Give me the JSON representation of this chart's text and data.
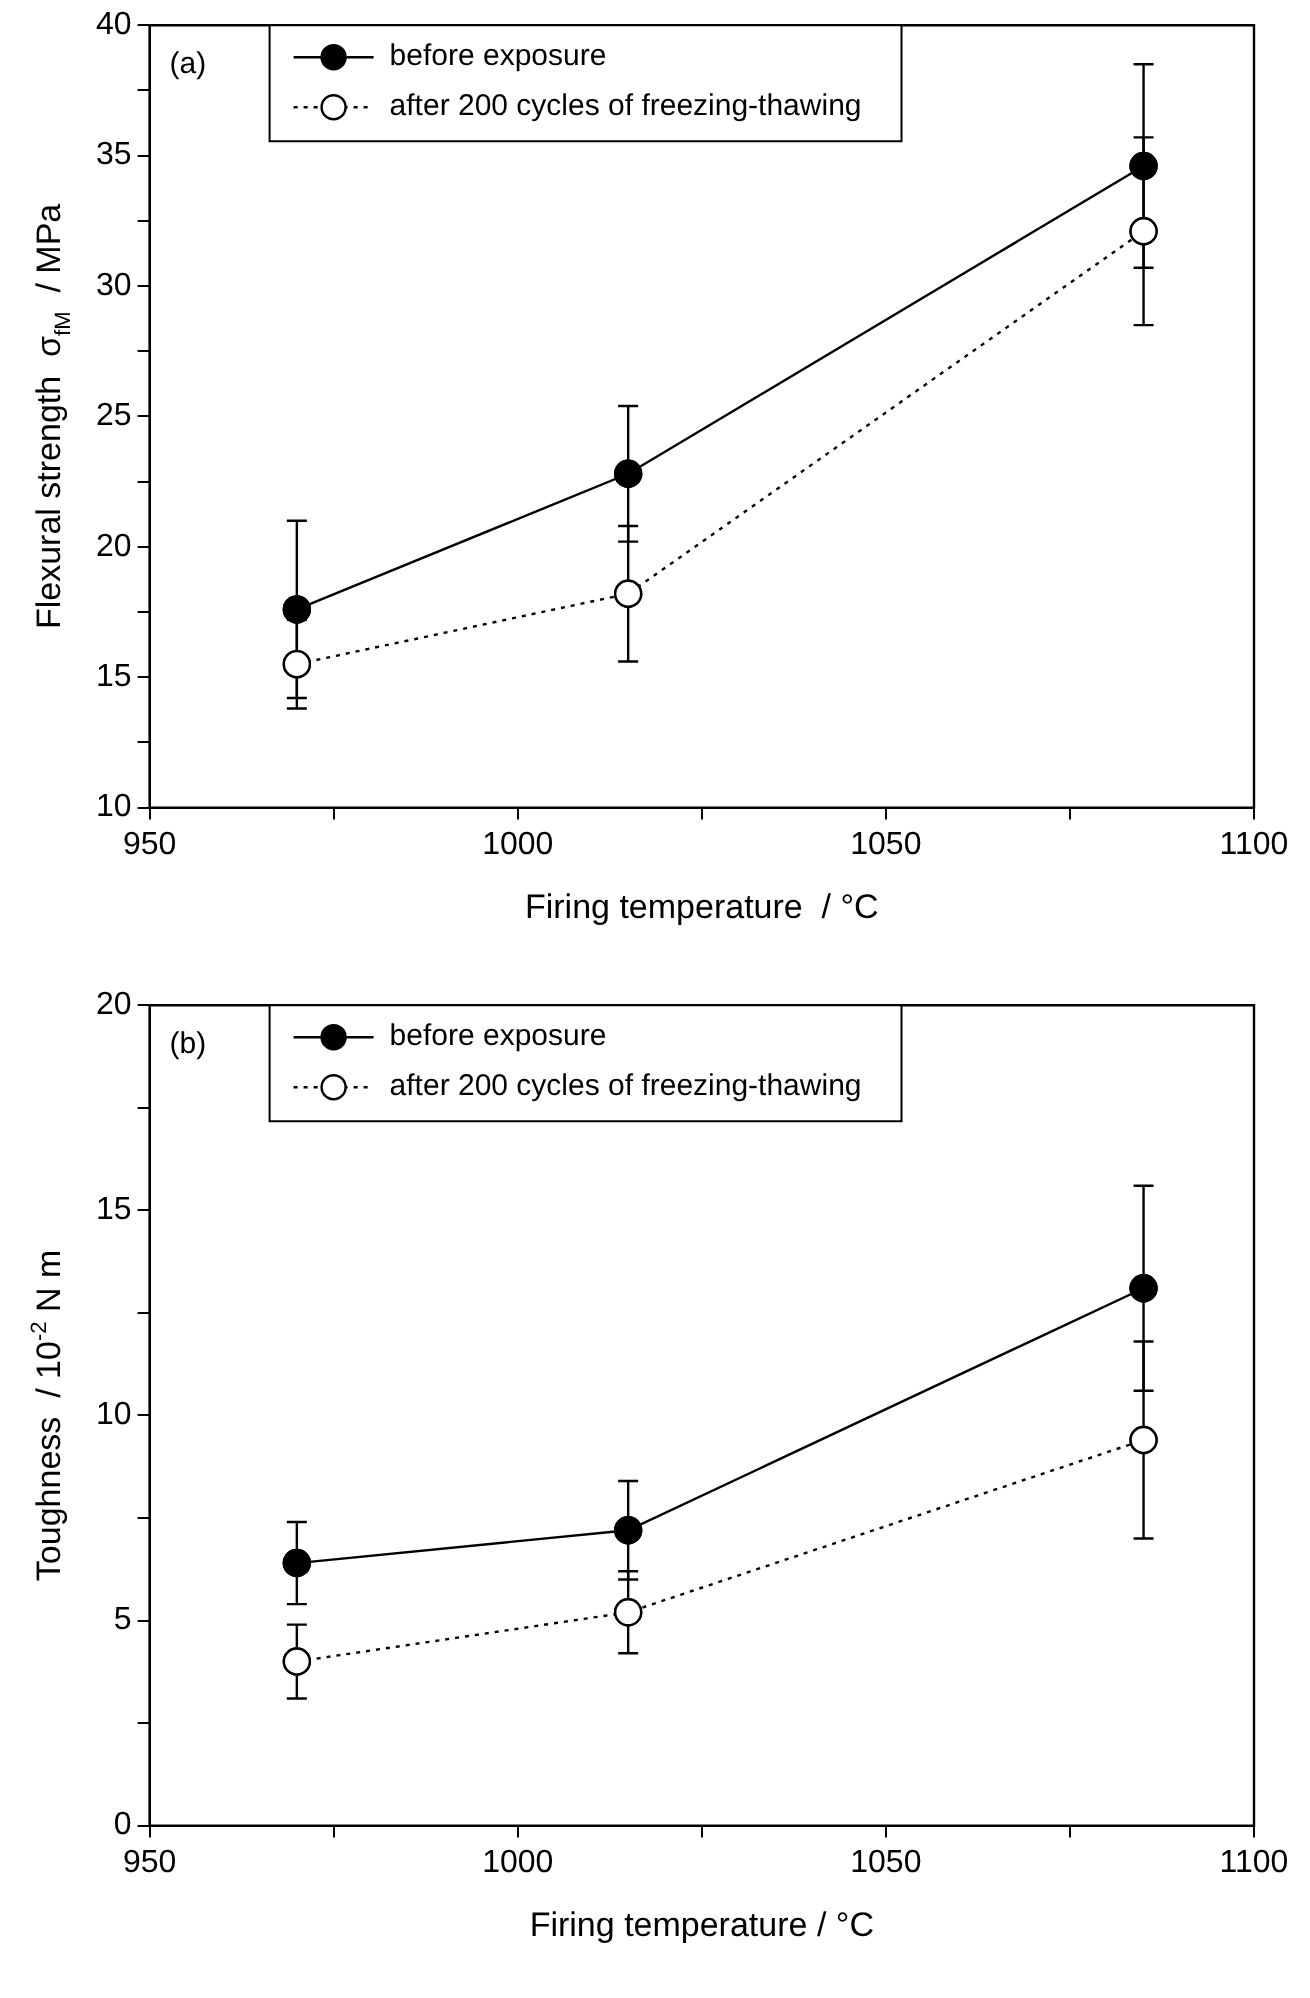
{
  "chart_data": [
    {
      "type": "line",
      "xlabel": "Firing temperature  / °C",
      "ylabel": "Flexural strength  σ$_{fM}$  / MPa",
      "x": [
        970,
        1015,
        1085
      ],
      "series": [
        {
          "name": "before exposure",
          "color": "#000000",
          "values": [
            17.6,
            22.8,
            34.6
          ],
          "errors": [
            3.4,
            2.6,
            3.9
          ],
          "line_style": "solid",
          "marker": "circle"
        },
        {
          "name": "after 200 cycles of freezing-thawing",
          "color": "#000000",
          "values": [
            15.5,
            18.2,
            32.1
          ],
          "errors": [
            1.7,
            2.6,
            3.6
          ],
          "line_style": "dotted",
          "marker": "circle"
        }
      ],
      "xlim": [
        950,
        1100
      ],
      "xticks": [
        950,
        {
          "value": 975,
          "label": null
        },
        1000,
        {
          "value": 1025,
          "label": null
        },
        1050,
        {
          "value": 1075,
          "label": null
        },
        1100
      ],
      "ylim": [
        10,
        40
      ],
      "yticks": [
        10,
        {
          "value": 12.5,
          "label": null
        },
        15,
        {
          "value": 17.5,
          "label": null
        },
        20,
        {
          "value": 22.5,
          "label": null
        },
        25,
        {
          "value": 27.5,
          "label": null
        },
        30,
        {
          "value": 32.5,
          "label": null
        },
        35,
        {
          "value": 37.5,
          "label": null
        },
        40
      ],
      "grid": false,
      "legend": "top",
      "annotations": [
        "(a)"
      ]
    },
    {
      "type": "line",
      "xlabel": "Firing temperature / °C",
      "ylabel": "Toughness  / 10$^{-2}$ N m",
      "x": [
        970,
        1015,
        1085
      ],
      "series": [
        {
          "name": "before exposure",
          "color": "#000000",
          "values": [
            6.4,
            7.2,
            13.1
          ],
          "errors": [
            1.0,
            1.2,
            2.5
          ],
          "line_style": "solid",
          "marker": "circle"
        },
        {
          "name": "after 200 cycles of freezing-thawing",
          "color": "#000000",
          "values": [
            4.0,
            5.2,
            9.4
          ],
          "errors": [
            0.9,
            1.0,
            2.4
          ],
          "line_style": "dotted",
          "marker": "circle"
        }
      ],
      "xlim": [
        950,
        1100
      ],
      "xticks": [
        950,
        {
          "value": 975,
          "label": null
        },
        1000,
        {
          "value": 1025,
          "label": null
        },
        1050,
        {
          "value": 1075,
          "label": null
        },
        1100
      ],
      "ylim": [
        0,
        20
      ],
      "yticks": [
        0,
        {
          "value": 2.5,
          "label": null
        },
        5,
        {
          "value": 7.5,
          "label": null
        },
        10,
        {
          "value": 12.5,
          "label": null
        },
        15,
        {
          "value": 17.5,
          "label": null
        },
        20
      ],
      "grid": false,
      "legend": "top",
      "annotations": [
        "(b)"
      ]
    }
  ]
}
